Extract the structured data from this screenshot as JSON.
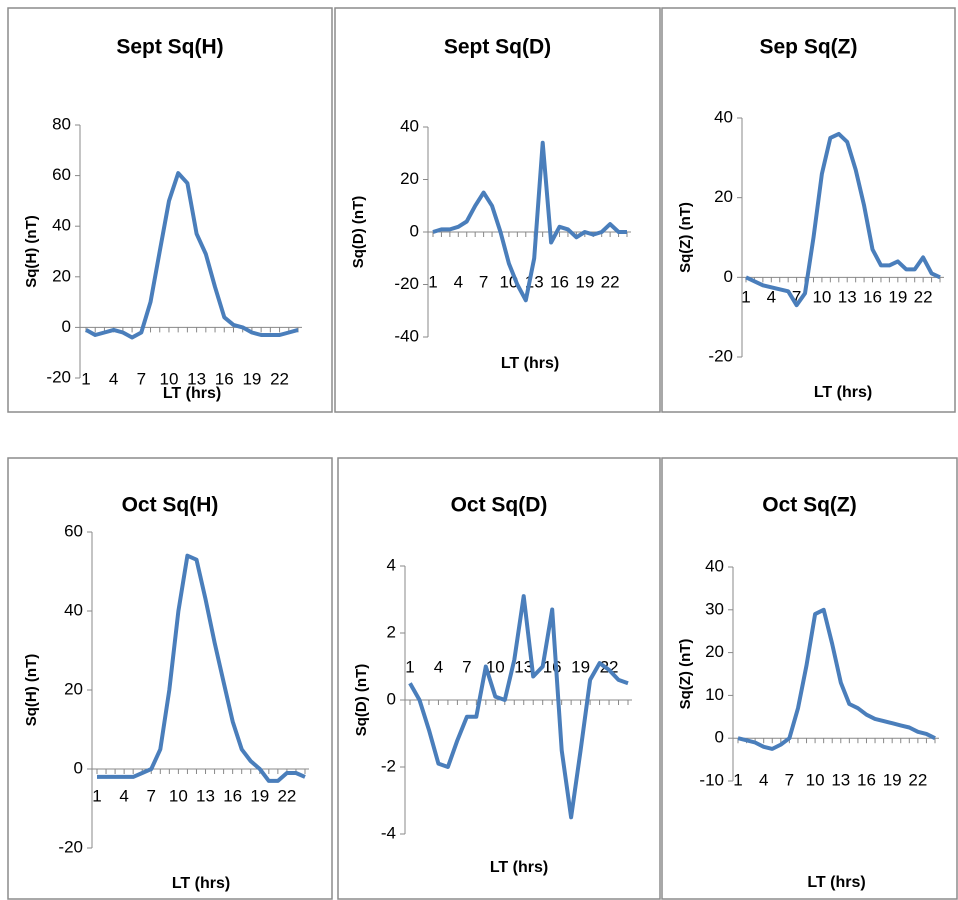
{
  "chart_data": [
    {
      "type": "line",
      "title": "Sept Sq(H)",
      "y_label": "Sq(H) (nT)",
      "x_label": "LT (hrs)",
      "color": "#4a7ebb",
      "categories": [
        "1",
        null,
        null,
        "4",
        null,
        null,
        "7",
        null,
        null,
        "10",
        null,
        null,
        "13",
        null,
        null,
        "16",
        null,
        null,
        "19",
        null,
        null,
        "22",
        null,
        null
      ],
      "values": [
        -1,
        -3,
        -2,
        -1,
        -2,
        -4,
        -2,
        10,
        30,
        50,
        61,
        57,
        37,
        29,
        16,
        4,
        1,
        0,
        -2,
        -3,
        -3,
        -3,
        -2,
        -1
      ],
      "ylim": [
        -20,
        80
      ],
      "yticks": [
        -20,
        0,
        20,
        40,
        60,
        80
      ]
    },
    {
      "type": "line",
      "title": "Sept Sq(D)",
      "y_label": "Sq(D) (nT)",
      "x_label": "LT (hrs)",
      "color": "#4a7ebb",
      "categories": [
        "1",
        null,
        null,
        "4",
        null,
        null,
        "7",
        null,
        null,
        "10",
        null,
        null,
        "13",
        null,
        null,
        "16",
        null,
        null,
        "19",
        null,
        null,
        "22",
        null,
        null
      ],
      "values": [
        0,
        1,
        1,
        2,
        4,
        10,
        15,
        10,
        0,
        -12,
        -20,
        -26,
        -10,
        34,
        -4,
        2,
        1,
        -2,
        0,
        -1,
        0,
        3,
        0,
        0
      ],
      "ylim": [
        -40,
        40
      ],
      "yticks": [
        -40,
        -20,
        0,
        20,
        40
      ]
    },
    {
      "type": "line",
      "title": "Sep Sq(Z)",
      "y_label": "Sq(Z) (nT)",
      "x_label": "LT (hrs)",
      "color": "#4a7ebb",
      "categories": [
        "1",
        null,
        null,
        "4",
        null,
        null,
        "7",
        null,
        null,
        "10",
        null,
        null,
        "13",
        null,
        null,
        "16",
        null,
        null,
        "19",
        null,
        null,
        "22",
        null,
        null
      ],
      "values": [
        0,
        -1,
        -2,
        -2.5,
        -3,
        -3.5,
        -7,
        -4,
        10,
        26,
        35,
        36,
        34,
        27,
        18,
        7,
        3,
        3,
        4,
        2,
        2,
        5,
        1,
        0
      ],
      "ylim": [
        -20,
        40
      ],
      "yticks": [
        -20,
        0,
        20,
        40
      ]
    },
    {
      "type": "line",
      "title": "Oct Sq(H)",
      "y_label": "Sq(H) (nT)",
      "x_label": "LT (hrs)",
      "color": "#4a7ebb",
      "categories": [
        "1",
        null,
        null,
        "4",
        null,
        null,
        "7",
        null,
        null,
        "10",
        null,
        null,
        "13",
        null,
        null,
        "16",
        null,
        null,
        "19",
        null,
        null,
        "22",
        null,
        null
      ],
      "values": [
        -2,
        -2,
        -2,
        -2,
        -2,
        -1,
        0,
        5,
        20,
        40,
        54,
        53,
        43,
        32,
        22,
        12,
        5,
        2,
        0,
        -3,
        -3,
        -1,
        -1,
        -2
      ],
      "ylim": [
        -20,
        60
      ],
      "yticks": [
        -20,
        0,
        20,
        40,
        60
      ]
    },
    {
      "type": "line",
      "title": "Oct Sq(D)",
      "y_label": "Sq(D) (nT)",
      "x_label": "LT (hrs)",
      "color": "#4a7ebb",
      "categories": [
        "1",
        null,
        null,
        "4",
        null,
        null,
        "7",
        null,
        null,
        "10",
        null,
        null,
        "13",
        null,
        null,
        "16",
        null,
        null,
        "19",
        null,
        null,
        "22",
        null,
        null
      ],
      "values": [
        0.5,
        0,
        -0.9,
        -1.9,
        -2,
        -1.2,
        -0.5,
        -0.5,
        1,
        0.1,
        0,
        1.2,
        3.1,
        0.7,
        1,
        2.7,
        -1.5,
        -3.5,
        -1.5,
        0.6,
        1.1,
        0.9,
        0.6,
        0.5
      ],
      "ylim": [
        -4,
        4
      ],
      "yticks": [
        -4,
        -2,
        0,
        2,
        4
      ]
    },
    {
      "type": "line",
      "title": "Oct Sq(Z)",
      "y_label": "Sq(Z) (nT)",
      "x_label": "LT (hrs)",
      "color": "#4a7ebb",
      "categories": [
        "1",
        null,
        null,
        "4",
        null,
        null,
        "7",
        null,
        null,
        "10",
        null,
        null,
        "13",
        null,
        null,
        "16",
        null,
        null,
        "19",
        null,
        null,
        "22",
        null,
        null
      ],
      "values": [
        0,
        -0.5,
        -1,
        -2,
        -2.5,
        -1.5,
        0,
        7,
        17,
        29,
        30,
        22,
        13,
        8,
        7,
        5.5,
        4.5,
        4,
        3.5,
        3,
        2.5,
        1.5,
        1,
        0
      ],
      "ylim": [
        -10,
        40
      ],
      "yticks": [
        -10,
        0,
        10,
        20,
        30,
        40
      ]
    }
  ]
}
